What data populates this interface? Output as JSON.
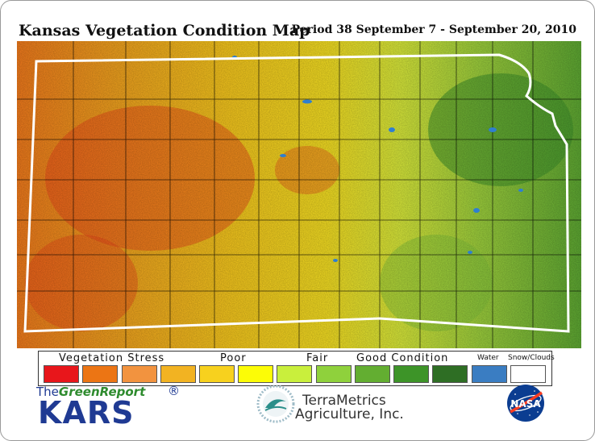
{
  "title": "Kansas Vegetation Condition Map",
  "period": "Period 38  September 7 - September 20, 2010",
  "legend": {
    "labels": {
      "stress": "Vegetation Stress",
      "poor": "Poor",
      "fair": "Fair",
      "good": "Good Condition",
      "water": "Water",
      "snow": "Snow/Clouds"
    },
    "colors": [
      "#e8161b",
      "#ec7514",
      "#f2933f",
      "#f2b322",
      "#f7d11e",
      "#fcfc06",
      "#c9ef3c",
      "#8fd13c",
      "#63ae31",
      "#3d9428",
      "#2e6e24",
      "#3a7dc2",
      "#ffffff"
    ]
  },
  "logos": {
    "greenreport_the": "The",
    "greenreport_green": "Green",
    "greenreport_report": "Report",
    "greenreport_reg": "®",
    "kars": "KARS",
    "terrametrics_line1": "TerraMetrics",
    "terrametrics_line2": "Agriculture, Inc.",
    "nasa": "NASA"
  },
  "icons": {
    "terrametrics": "terrametrics-emblem-icon",
    "nasa": "nasa-meatball-icon"
  }
}
